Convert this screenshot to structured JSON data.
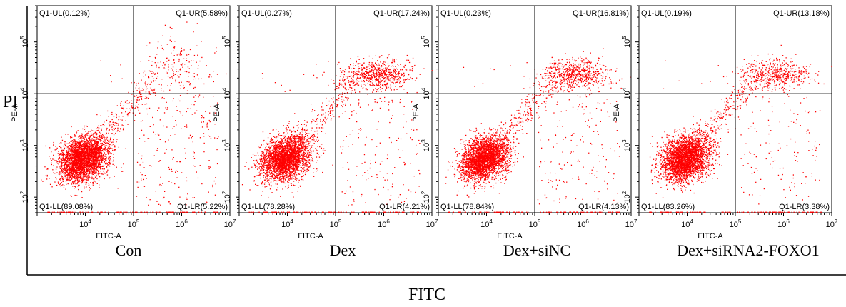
{
  "figure": {
    "y_label": "PI",
    "x_label": "FITC"
  },
  "chart_data": [
    {
      "type": "scatter",
      "title": "Con",
      "xlabel": "FITC-A",
      "ylabel": "PE-A",
      "xscale": "log",
      "yscale": "log",
      "xlim": [
        1000,
        10000000
      ],
      "ylim": [
        50,
        500000
      ],
      "x_ticks": [
        "10^4",
        "10^5",
        "10^6",
        "10^7"
      ],
      "y_ticks": [
        "10^2",
        "10^3",
        "10^4",
        "10^5"
      ],
      "gate": {
        "x": 100000,
        "y": 10000
      },
      "quadrants": {
        "UL": "Q1-UL(0.12%)",
        "UR": "Q1-UR(5.58%)",
        "LL": "Q1-LL(89.08%)",
        "LR": "Q1-LR(5.22%)"
      },
      "quadrant_percent": {
        "UL": 0.12,
        "UR": 5.58,
        "LL": 89.08,
        "LR": 5.22
      },
      "point_color": "#ff0000"
    },
    {
      "type": "scatter",
      "title": "Dex",
      "xlabel": "FITC-A",
      "ylabel": "PE-A",
      "xscale": "log",
      "yscale": "log",
      "xlim": [
        1000,
        10000000
      ],
      "ylim": [
        50,
        500000
      ],
      "x_ticks": [
        "10^4",
        "10^5",
        "10^6",
        "10^7"
      ],
      "y_ticks": [
        "10^2",
        "10^3",
        "10^4",
        "10^5"
      ],
      "gate": {
        "x": 100000,
        "y": 10000
      },
      "quadrants": {
        "UL": "Q1-UL(0.27%)",
        "UR": "Q1-UR(17.24%)",
        "LL": "Q1-LL(78.28%)",
        "LR": "Q1-LR(4.21%)"
      },
      "quadrant_percent": {
        "UL": 0.27,
        "UR": 17.24,
        "LL": 78.28,
        "LR": 4.21
      },
      "point_color": "#ff0000"
    },
    {
      "type": "scatter",
      "title": "Dex+siNC",
      "xlabel": "FITC-A",
      "ylabel": "PE-A",
      "xscale": "log",
      "yscale": "log",
      "xlim": [
        1000,
        10000000
      ],
      "ylim": [
        50,
        500000
      ],
      "x_ticks": [
        "10^4",
        "10^5",
        "10^6",
        "10^7"
      ],
      "y_ticks": [
        "10^2",
        "10^3",
        "10^4",
        "10^5"
      ],
      "gate": {
        "x": 100000,
        "y": 10000
      },
      "quadrants": {
        "UL": "Q1-UL(0.23%)",
        "UR": "Q1-UR(16.81%)",
        "LL": "Q1-LL(78.84%)",
        "LR": "Q1-LR(4.13%)"
      },
      "quadrant_percent": {
        "UL": 0.23,
        "UR": 16.81,
        "LL": 78.84,
        "LR": 4.13
      },
      "point_color": "#ff0000"
    },
    {
      "type": "scatter",
      "title": "Dex+siRNA2-FOXO1",
      "xlabel": "FITC-A",
      "ylabel": "PE-A",
      "xscale": "log",
      "yscale": "log",
      "xlim": [
        1000,
        10000000
      ],
      "ylim": [
        50,
        500000
      ],
      "x_ticks": [
        "10^4",
        "10^5",
        "10^6",
        "10^7"
      ],
      "y_ticks": [
        "10^2",
        "10^3",
        "10^4",
        "10^5"
      ],
      "gate": {
        "x": 100000,
        "y": 10000
      },
      "quadrants": {
        "UL": "Q1-UL(0.19%)",
        "UR": "Q1-UR(13.18%)",
        "LL": "Q1-LL(83.26%)",
        "LR": "Q1-LR(3.38%)"
      },
      "quadrant_percent": {
        "UL": 0.19,
        "UR": 13.18,
        "LL": 83.26,
        "LR": 3.38
      },
      "point_color": "#ff0000"
    }
  ]
}
